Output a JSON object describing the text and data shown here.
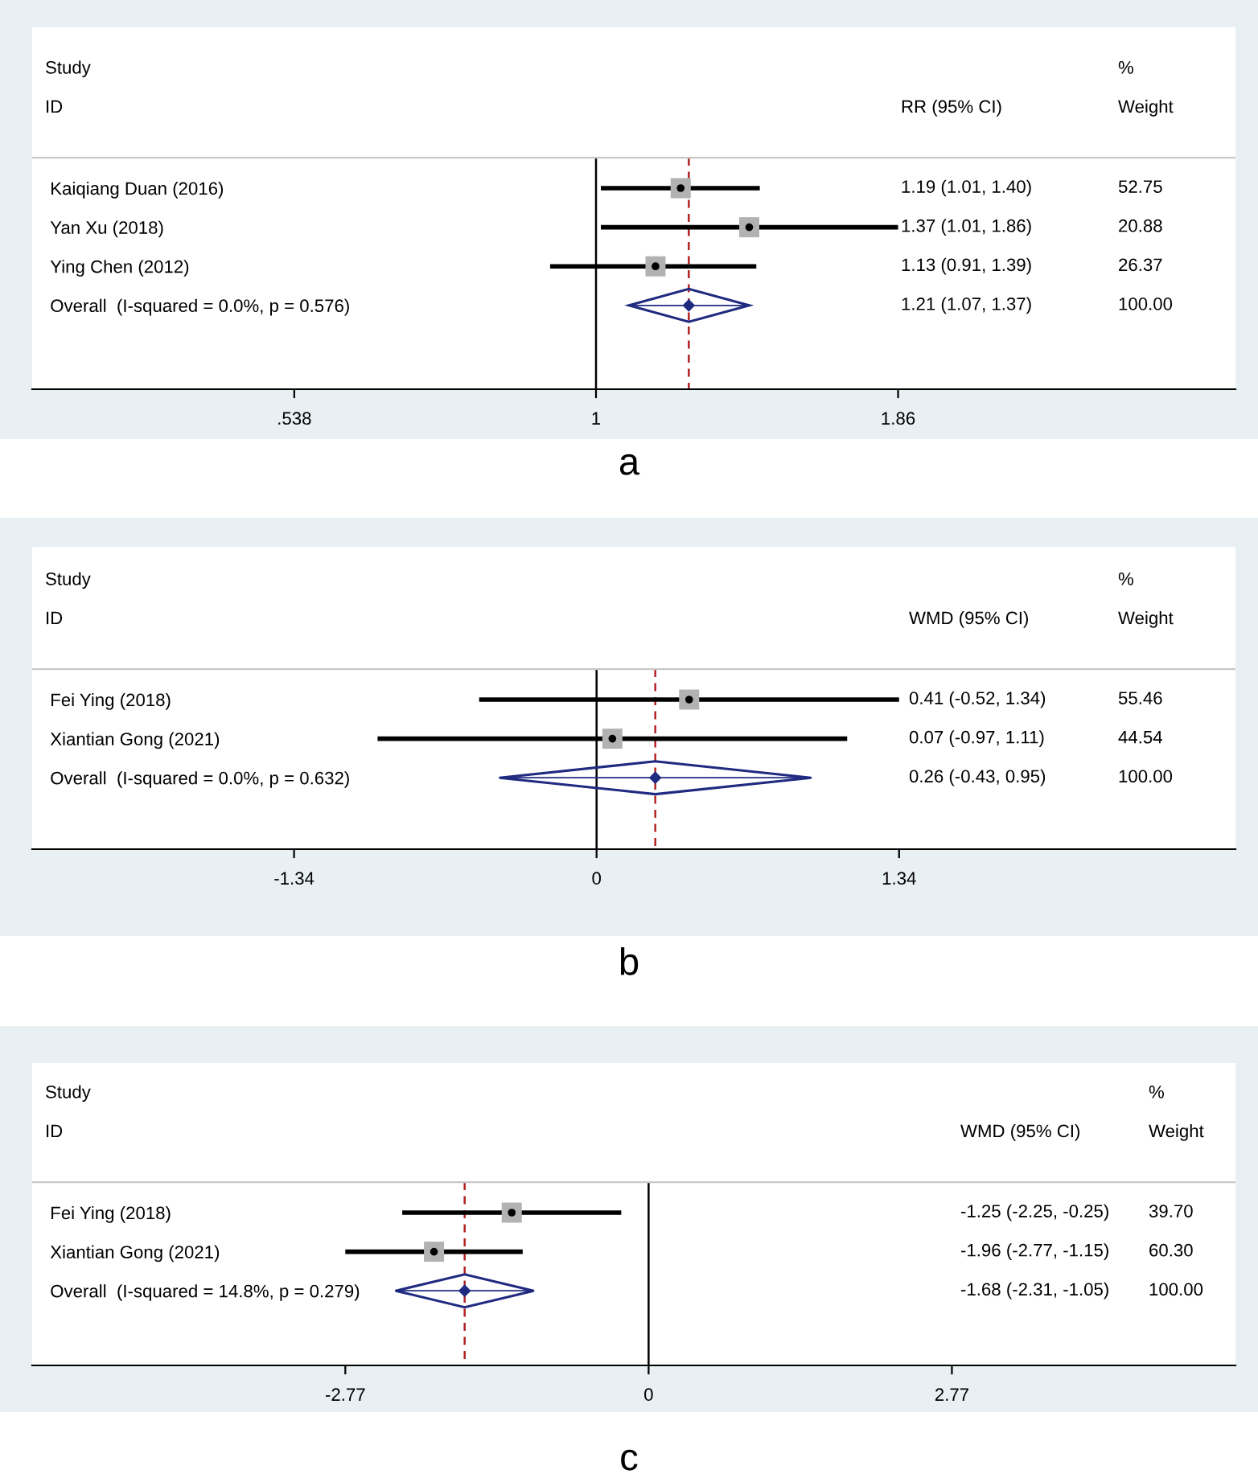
{
  "chart_data": [
    {
      "type": "scatter",
      "orientation": "horizontal",
      "title": "a",
      "log": "x",
      "categories": [
        "Kaiqiang Duan (2016)",
        "Yan Xu (2018)",
        "Ying Chen (2012)",
        "Overall  (I-squared = 0.0%, p = 0.576)"
      ],
      "series": [
        {
          "type": "scatter",
          "marker": "square",
          "color": "#000000",
          "values": [
            1.19,
            1.37,
            1.13,
            null
          ],
          "errors": [
            [
              1.01,
              1.4
            ],
            [
              1.01,
              1.86
            ],
            [
              0.91,
              1.39
            ],
            null
          ]
        },
        {
          "type": "scatter",
          "marker": "diamond",
          "color": "#1f2a80",
          "values": [
            null,
            null,
            null,
            1.21
          ],
          "errors": [
            null,
            null,
            null,
            [
              1.07,
              1.37
            ]
          ]
        }
      ],
      "value_labels": [
        "1.19 (1.01, 1.40)",
        "1.37 (1.01, 1.86)",
        "1.13 (0.91, 1.39)",
        "1.21 (1.07, 1.37)"
      ],
      "xlim": [
        0.314,
        3.72
      ],
      "xticks": [
        {
          "value": 0.538,
          "label": ".538"
        },
        1,
        1.86
      ],
      "ref_lines": [
        {
          "axis": "x",
          "value": 1,
          "color": "#000000",
          "line_style": "solid"
        },
        {
          "axis": "x",
          "value": 1.21,
          "color": "#b22222",
          "line_style": "dashed"
        }
      ],
      "annotations": [
        "Study",
        "ID",
        "RR (95% CI)",
        "%",
        "Weight",
        "52.75",
        "20.88",
        "26.37",
        "100.00"
      ],
      "grid": false,
      "legend": false
    },
    {
      "type": "scatter",
      "orientation": "horizontal",
      "title": "b",
      "categories": [
        "Fei Ying (2018)",
        "Xiantian Gong (2021)",
        "Overall  (I-squared = 0.0%, p = 0.632)"
      ],
      "series": [
        {
          "type": "scatter",
          "marker": "square",
          "color": "#000000",
          "values": [
            0.41,
            0.07,
            null
          ],
          "errors": [
            [
              -0.52,
              1.34
            ],
            [
              -0.97,
              1.11
            ],
            null
          ]
        },
        {
          "type": "scatter",
          "marker": "diamond",
          "color": "#1f2a80",
          "values": [
            null,
            null,
            0.26
          ],
          "errors": [
            null,
            null,
            [
              -0.43,
              0.95
            ]
          ]
        }
      ],
      "value_labels": [
        "0.41 (-0.52, 1.34)",
        "0.07 (-0.97, 1.11)",
        "0.26 (-0.43, 0.95)"
      ],
      "xlim": [
        -2.5,
        2.83
      ],
      "xticks": [
        -1.34,
        0,
        1.34
      ],
      "ref_lines": [
        {
          "axis": "x",
          "value": 0,
          "color": "#000000",
          "line_style": "solid"
        },
        {
          "axis": "x",
          "value": 0.26,
          "color": "#b22222",
          "line_style": "dashed"
        }
      ],
      "annotations": [
        "Study",
        "ID",
        "WMD (95% CI)",
        "%",
        "Weight",
        "55.46",
        "44.54",
        "100.00"
      ],
      "grid": false,
      "legend": false
    },
    {
      "type": "scatter",
      "orientation": "horizontal",
      "title": "c",
      "categories": [
        "Fei Ying (2018)",
        "Xiantian Gong (2021)",
        "Overall  (I-squared = 14.8%, p = 0.279)"
      ],
      "series": [
        {
          "type": "scatter",
          "marker": "square",
          "color": "#000000",
          "values": [
            -1.25,
            -1.96,
            null
          ],
          "errors": [
            [
              -2.25,
              -0.25
            ],
            [
              -2.77,
              -1.15
            ],
            null
          ]
        },
        {
          "type": "scatter",
          "marker": "diamond",
          "color": "#1f2a80",
          "values": [
            null,
            null,
            -1.68
          ],
          "errors": [
            null,
            null,
            [
              -2.31,
              -1.05
            ]
          ]
        }
      ],
      "value_labels": [
        "-1.25 (-2.25, -0.25)",
        "-1.96 (-2.77, -1.15)",
        "-1.68 (-2.31, -1.05)"
      ],
      "xlim": [
        -5.63,
        5.36
      ],
      "xticks": [
        -2.77,
        0,
        2.77
      ],
      "ref_lines": [
        {
          "axis": "x",
          "value": 0,
          "color": "#000000",
          "line_style": "solid"
        },
        {
          "axis": "x",
          "value": -1.68,
          "color": "#b22222",
          "line_style": "dashed"
        }
      ],
      "annotations": [
        "Study",
        "ID",
        "WMD (95% CI)",
        "%",
        "Weight",
        "39.70",
        "60.30",
        "100.00"
      ],
      "grid": false,
      "legend": false
    }
  ]
}
